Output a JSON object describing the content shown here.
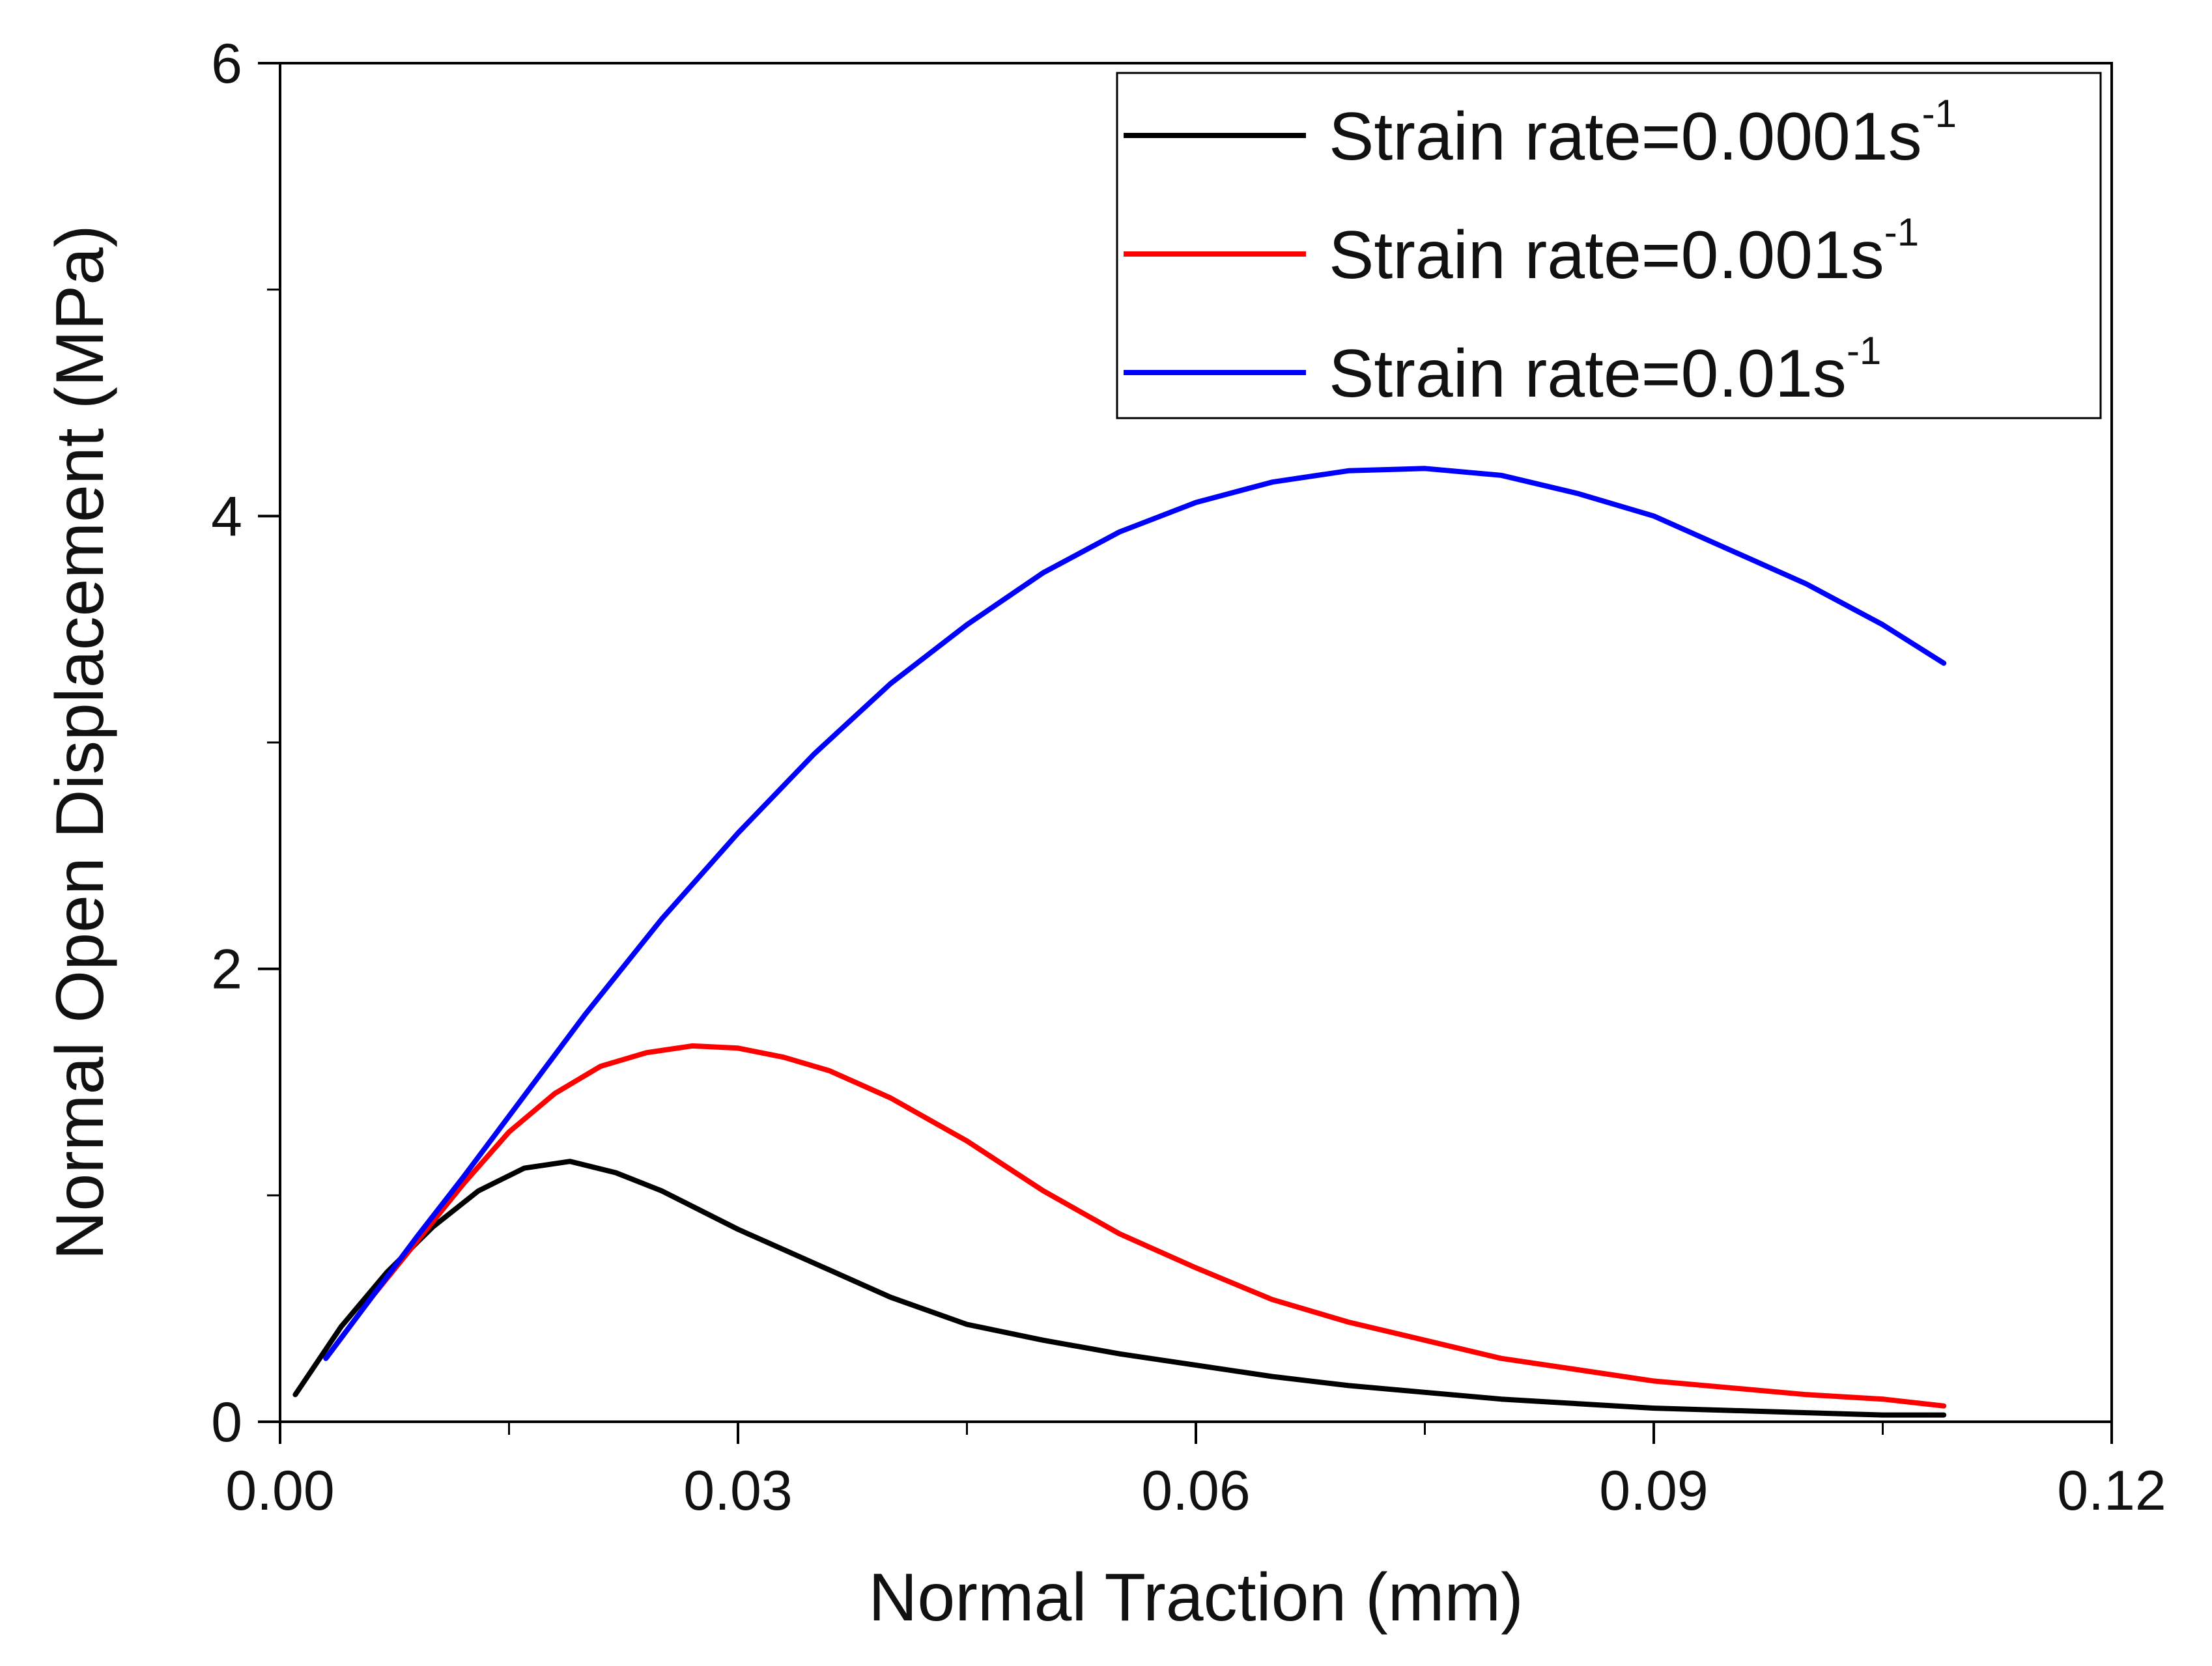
{
  "chart_data": {
    "type": "line",
    "title": "",
    "xlabel": "Normal Traction (mm)",
    "ylabel": "Normal Open Displacement (MPa)",
    "xlim": [
      0.0,
      0.12
    ],
    "ylim": [
      0,
      6
    ],
    "xticks": [
      0.0,
      0.03,
      0.06,
      0.09,
      0.12
    ],
    "xtick_labels": [
      "0.00",
      "0.03",
      "0.06",
      "0.09",
      "0.12"
    ],
    "yticks": [
      0,
      2,
      4,
      6
    ],
    "ytick_labels": [
      "0",
      "2",
      "4",
      "6"
    ],
    "grid": false,
    "legend_position": "top-right",
    "series": [
      {
        "name": "Strain rate=0.0001s",
        "name_sup": "-1",
        "color": "#000000",
        "x": [
          0.001,
          0.004,
          0.007,
          0.01,
          0.013,
          0.016,
          0.019,
          0.022,
          0.025,
          0.03,
          0.035,
          0.04,
          0.045,
          0.05,
          0.055,
          0.06,
          0.065,
          0.07,
          0.075,
          0.08,
          0.085,
          0.09,
          0.095,
          0.1,
          0.105,
          0.109
        ],
        "y": [
          0.12,
          0.42,
          0.66,
          0.86,
          1.02,
          1.12,
          1.15,
          1.1,
          1.02,
          0.85,
          0.7,
          0.55,
          0.43,
          0.36,
          0.3,
          0.25,
          0.2,
          0.16,
          0.13,
          0.1,
          0.08,
          0.06,
          0.05,
          0.04,
          0.03,
          0.03
        ]
      },
      {
        "name": "Strain rate=0.001s",
        "name_sup": "-1",
        "color": "#ff0000",
        "x": [
          0.003,
          0.006,
          0.009,
          0.012,
          0.015,
          0.018,
          0.021,
          0.024,
          0.027,
          0.03,
          0.033,
          0.036,
          0.04,
          0.045,
          0.05,
          0.055,
          0.06,
          0.065,
          0.07,
          0.075,
          0.08,
          0.085,
          0.09,
          0.095,
          0.1,
          0.105,
          0.109
        ],
        "y": [
          0.28,
          0.55,
          0.8,
          1.05,
          1.28,
          1.45,
          1.57,
          1.63,
          1.66,
          1.65,
          1.61,
          1.55,
          1.43,
          1.24,
          1.02,
          0.83,
          0.68,
          0.54,
          0.44,
          0.36,
          0.28,
          0.23,
          0.18,
          0.15,
          0.12,
          0.1,
          0.07
        ]
      },
      {
        "name": "Strain rate=0.01s",
        "name_sup": "-1",
        "color": "#0000ff",
        "x": [
          0.003,
          0.006,
          0.009,
          0.012,
          0.015,
          0.02,
          0.025,
          0.03,
          0.035,
          0.04,
          0.045,
          0.05,
          0.055,
          0.06,
          0.065,
          0.07,
          0.075,
          0.08,
          0.085,
          0.09,
          0.095,
          0.1,
          0.105,
          0.109
        ],
        "y": [
          0.28,
          0.55,
          0.82,
          1.08,
          1.35,
          1.8,
          2.22,
          2.6,
          2.95,
          3.26,
          3.52,
          3.75,
          3.93,
          4.06,
          4.15,
          4.2,
          4.21,
          4.18,
          4.1,
          4.0,
          3.85,
          3.7,
          3.52,
          3.35
        ]
      }
    ]
  }
}
